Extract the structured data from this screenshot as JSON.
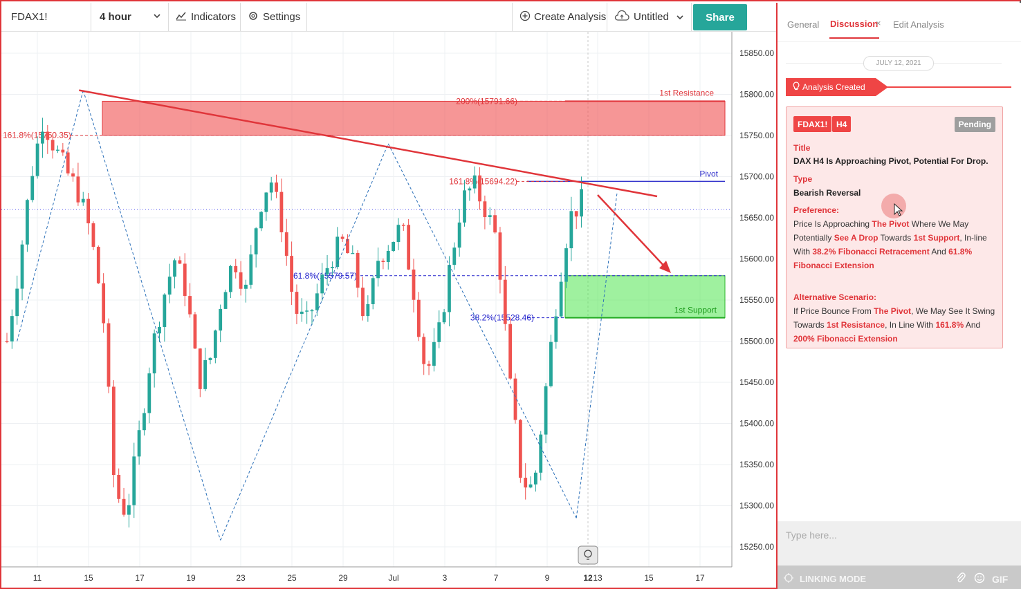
{
  "toolbar": {
    "symbol": "FDAX1!",
    "interval": "4 hour",
    "indicators_label": "Indicators",
    "settings_label": "Settings",
    "create_analysis_label": "Create Analysis",
    "layout_name": "Untitled",
    "share_label": "Share"
  },
  "panel": {
    "tabs": [
      "General",
      "Discussion",
      "Edit Analysis"
    ],
    "date": "JULY 12, 2021",
    "created_label": "Analysis Created",
    "badges": [
      "FDAX1!",
      "H4"
    ],
    "status": "Pending",
    "title_label": "Title",
    "title": "DAX H4 Is Approaching Pivot, Potential For Drop.",
    "type_label": "Type",
    "type": "Bearish Reversal",
    "preference_label": "Preference:",
    "preference_parts": [
      {
        "t": "Price Is Approaching ",
        "h": false
      },
      {
        "t": "The Pivot",
        "h": true
      },
      {
        "t": " Where We May Potentially ",
        "h": false
      },
      {
        "t": "See A Drop",
        "h": true
      },
      {
        "t": " Towards ",
        "h": false
      },
      {
        "t": "1st Support",
        "h": true
      },
      {
        "t": ", In-line With ",
        "h": false
      },
      {
        "t": "38.2% Fibonacci Retracement",
        "h": true
      },
      {
        "t": " And ",
        "h": false
      },
      {
        "t": "61.8% Fibonacci Extension",
        "h": true
      }
    ],
    "alt_label": "Alternative Scenario:",
    "alt_parts": [
      {
        "t": "If Price Bounce From ",
        "h": false
      },
      {
        "t": "The Pivot",
        "h": true
      },
      {
        "t": ", We May See It Swing Towards ",
        "h": false
      },
      {
        "t": "1st Resistance",
        "h": true
      },
      {
        "t": ", In Line With ",
        "h": false
      },
      {
        "t": "161.8%",
        "h": true
      },
      {
        "t": " And ",
        "h": false
      },
      {
        "t": "200% Fibonacci Extension",
        "h": true
      }
    ],
    "input_placeholder": "Type here...",
    "linking_mode": "LINKING MODE",
    "gif_label": "GIF"
  },
  "chart_data": {
    "type": "candlestick",
    "symbol": "FDAX1!",
    "interval": "4 hour",
    "ylim": [
      15235,
      15870
    ],
    "y_ticks": [
      "15850.00",
      "15800.00",
      "15750.00",
      "15700.00",
      "15650.00",
      "15600.00",
      "15550.00",
      "15500.00",
      "15450.00",
      "15400.00",
      "15350.00",
      "15300.00",
      "15250.00"
    ],
    "x_ticks": [
      "11",
      "15",
      "17",
      "19",
      "23",
      "25",
      "29",
      "Jul",
      "3",
      "7",
      "9",
      "12",
      "13",
      "15",
      "17"
    ],
    "current_date_label": "12",
    "grid": true,
    "annotations": {
      "resistance": {
        "label": "1st Resistance",
        "from": 15750.35,
        "to": 15791.66
      },
      "support": {
        "label": "1st Support",
        "from": 15528.46,
        "to": 15579.57
      },
      "pivot": {
        "label": "Pivot",
        "value": 15694.22
      },
      "fib_labels": [
        {
          "text": "200%(15791.66)",
          "value": 15791.66,
          "color": "#e0353a"
        },
        {
          "text": "161.8%(15750.35)",
          "value": 15750.35,
          "color": "#e0353a"
        },
        {
          "text": "161.8%(15694.22)",
          "value": 15694.22,
          "color": "#e0353a"
        },
        {
          "text": "61.8%(15579.57)",
          "value": 15579.57,
          "color": "#2222cc"
        },
        {
          "text": "38.2%(15528.46)",
          "value": 15528.46,
          "color": "#2222cc"
        }
      ],
      "last_price": 15660
    },
    "pattern_points": [
      {
        "x": 2,
        "y": 15500
      },
      {
        "x": 15,
        "y": 15805
      },
      {
        "x": 42,
        "y": 15258
      },
      {
        "x": 75,
        "y": 15740
      },
      {
        "x": 112,
        "y": 15285
      },
      {
        "x": 120,
        "y": 15680
      }
    ],
    "trendline": [
      {
        "x": 15,
        "y": 15805
      },
      {
        "x": 134,
        "y": 15678
      }
    ],
    "arrow": [
      {
        "x": 122,
        "y": 15662
      },
      {
        "x": 136,
        "y": 15585
      }
    ],
    "candle_seed_path": [
      15500,
      15590,
      15700,
      15770,
      15735,
      15705,
      15680,
      15630,
      15540,
      15320,
      15290,
      15380,
      15480,
      15550,
      15600,
      15560,
      15450,
      15480,
      15560,
      15600,
      15560,
      15660,
      15700,
      15640,
      15540,
      15520,
      15560,
      15600,
      15620,
      15590,
      15520,
      15600,
      15620,
      15640,
      15560,
      15460,
      15500,
      15590,
      15670,
      15690,
      15660,
      15620,
      15450,
      15330,
      15320,
      15440,
      15560,
      15650,
      15670
    ]
  }
}
